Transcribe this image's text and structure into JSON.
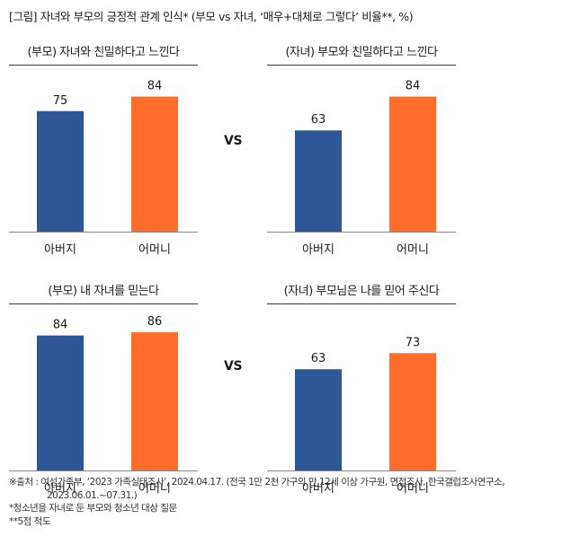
{
  "figure_title": "[그림] 자녀와 부모의 긍정적 관계 인식* (부모 vs 자녀, ‘매우+대체로 그렇다’ 비율**, %)",
  "vs_label": "VS",
  "colors": {
    "father": "#2e5797",
    "mother": "#ff6d2c",
    "axis": "#888888",
    "rule": "#3a3a3a"
  },
  "notes": {
    "source_line1": "※출처 : 여성가족부, ‘2023 가족실태조사’, 2024.04.17. (전국 1만 2천 가구의 만 12세 이상 가구원, 면접조사, 한국갤럽조사연구소,",
    "source_line2": "2023.06.01.~07.31.)",
    "note1": "*청소년을 자녀로 둔 부모와 청소년 대상 질문",
    "note2": "**5점 척도"
  },
  "chart_data": [
    {
      "type": "bar",
      "title": "(부모) 자녀와 친밀하다고 느낀다",
      "categories": [
        "아버지",
        "어머니"
      ],
      "values": [
        75,
        84
      ],
      "ylim": [
        0,
        100
      ]
    },
    {
      "type": "bar",
      "title": "(자녀) 부모와 친밀하다고 느낀다",
      "categories": [
        "아버지",
        "어머니"
      ],
      "values": [
        63,
        84
      ],
      "ylim": [
        0,
        100
      ]
    },
    {
      "type": "bar",
      "title": "(부모) 내 자녀를 믿는다",
      "categories": [
        "아버지",
        "어머니"
      ],
      "values": [
        84,
        86
      ],
      "ylim": [
        0,
        100
      ]
    },
    {
      "type": "bar",
      "title": "(자녀) 부모님은 나를 믿어 주신다",
      "categories": [
        "아버지",
        "어머니"
      ],
      "values": [
        63,
        73
      ],
      "ylim": [
        0,
        100
      ]
    }
  ]
}
